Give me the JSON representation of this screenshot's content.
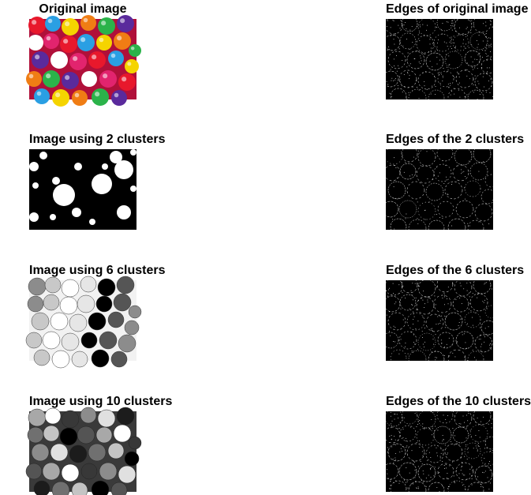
{
  "figure": {
    "titles": {
      "original": "Original image",
      "edges_original": "Edges of original image",
      "clusters_2": "Image using 2 clusters",
      "edges_2": "Edges of the 2 clusters",
      "clusters_6": "Image using 6 clusters",
      "edges_6": "Edges of the 6 clusters",
      "clusters_10": "Image using 10 clusters",
      "edges_10": "Edges of the 10 clusters"
    },
    "gumball_colors": [
      "#e8182c",
      "#2a9fe3",
      "#f5d400",
      "#f07d14",
      "#2bb34a",
      "#5a2a9c",
      "#ffffff",
      "#e2246e"
    ]
  }
}
